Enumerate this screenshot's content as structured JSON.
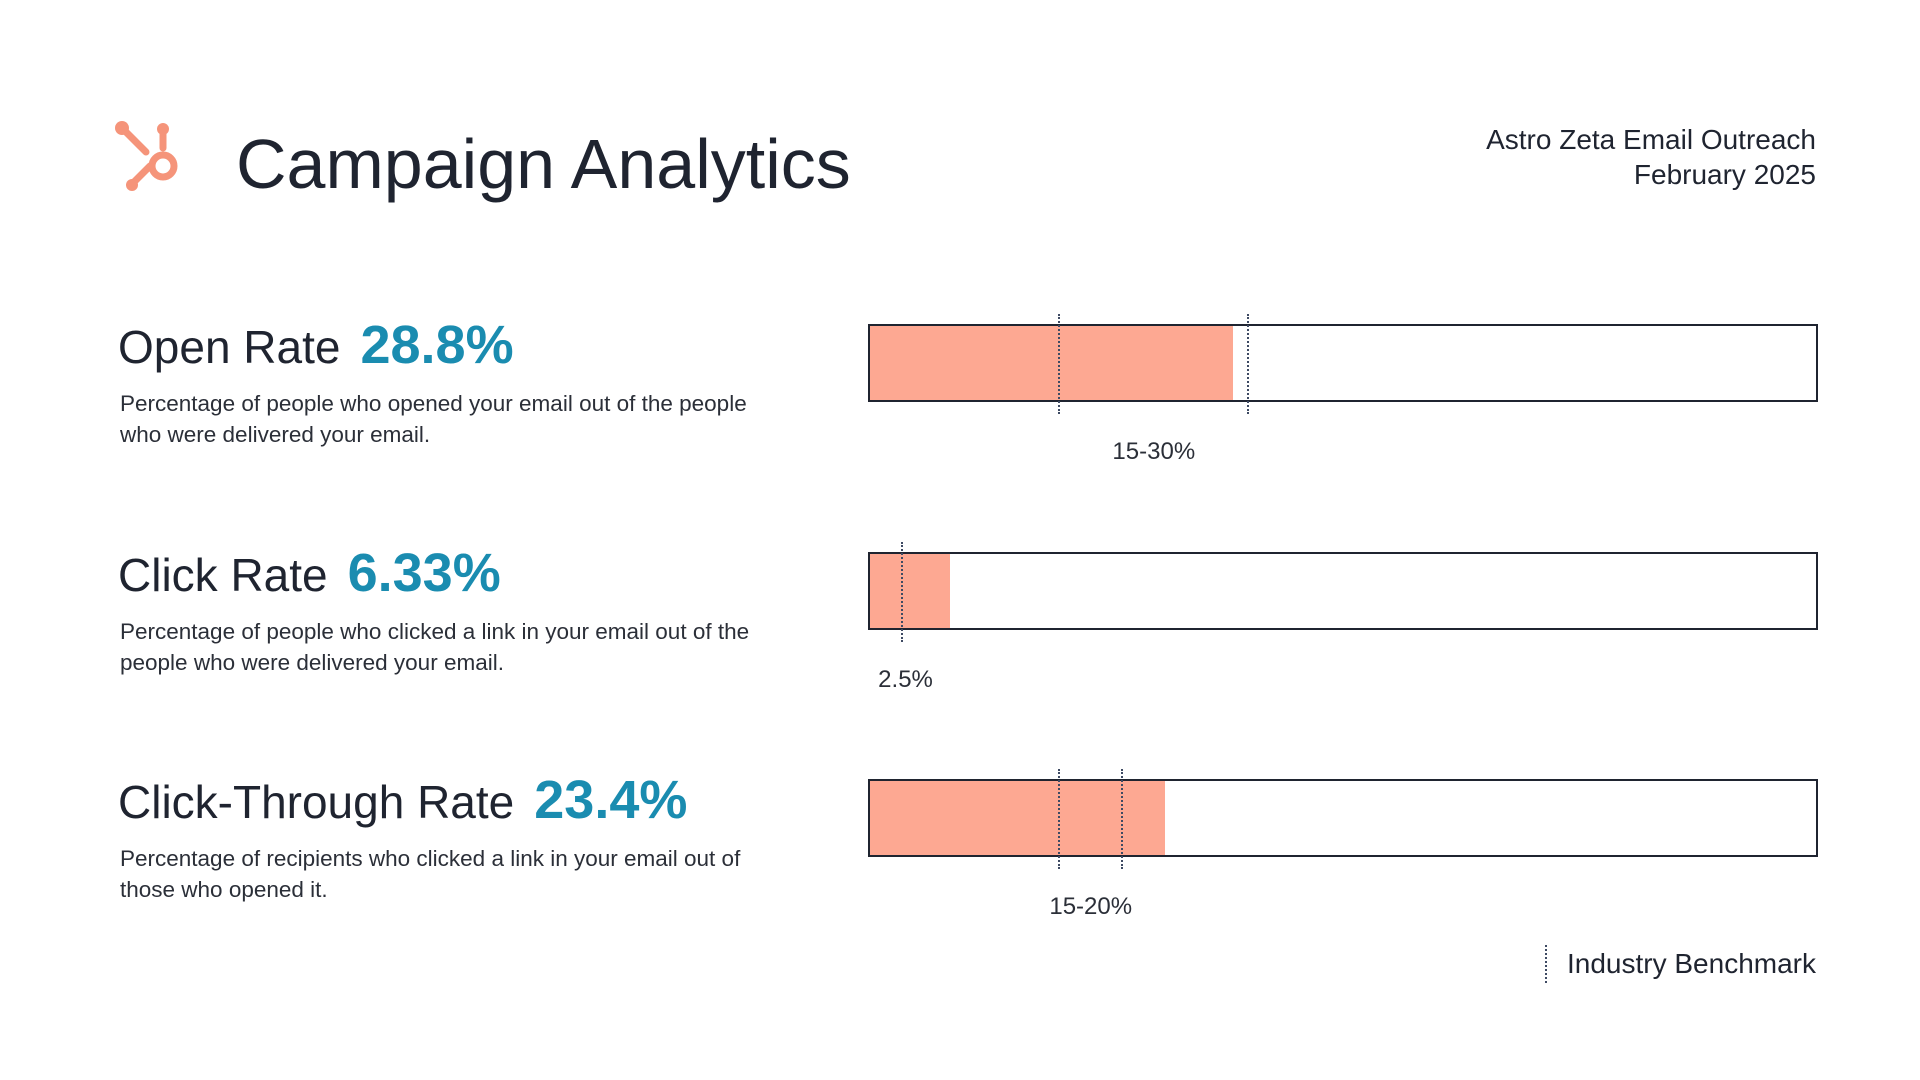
{
  "header": {
    "title": "Campaign Analytics",
    "campaign_name": "Astro Zeta Email Outreach",
    "campaign_date": "February 2025",
    "logo_icon": "hubspot-sprocket-icon"
  },
  "colors": {
    "accent": "#1a8cb0",
    "bar_fill": "#fda892",
    "logo": "#f5947a",
    "text": "#1f2430",
    "benchmark_line": "#3e4a63"
  },
  "metrics": [
    {
      "name": "Open Rate",
      "value_label": "28.8%",
      "description": "Percentage of people who opened your email out of the people who were delivered your email.",
      "benchmark_label": "15-30%"
    },
    {
      "name": "Click Rate",
      "value_label": "6.33%",
      "description": "Percentage of people who clicked a link in your email out of the people who were delivered your email.",
      "benchmark_label": "2.5%"
    },
    {
      "name": "Click-Through Rate",
      "value_label": "23.4%",
      "description": "Percentage of recipients who clicked a link in your email out of those who opened it.",
      "benchmark_label": "15-20%"
    }
  ],
  "legend": {
    "label": "Industry Benchmark"
  },
  "chart_data": {
    "type": "bar",
    "orientation": "horizontal",
    "categories": [
      "Open Rate",
      "Click Rate",
      "Click-Through Rate"
    ],
    "values": [
      28.8,
      6.33,
      23.4
    ],
    "xlim": [
      0,
      75
    ],
    "benchmarks": [
      {
        "category": "Open Rate",
        "range": [
          15,
          30
        ],
        "label": "15-30%"
      },
      {
        "category": "Click Rate",
        "range": [
          2.5
        ],
        "label": "2.5%"
      },
      {
        "category": "Click-Through Rate",
        "range": [
          15,
          20
        ],
        "label": "15-20%"
      }
    ],
    "legend": [
      "Industry Benchmark"
    ],
    "legend_position": "bottom-right",
    "grid": false
  }
}
